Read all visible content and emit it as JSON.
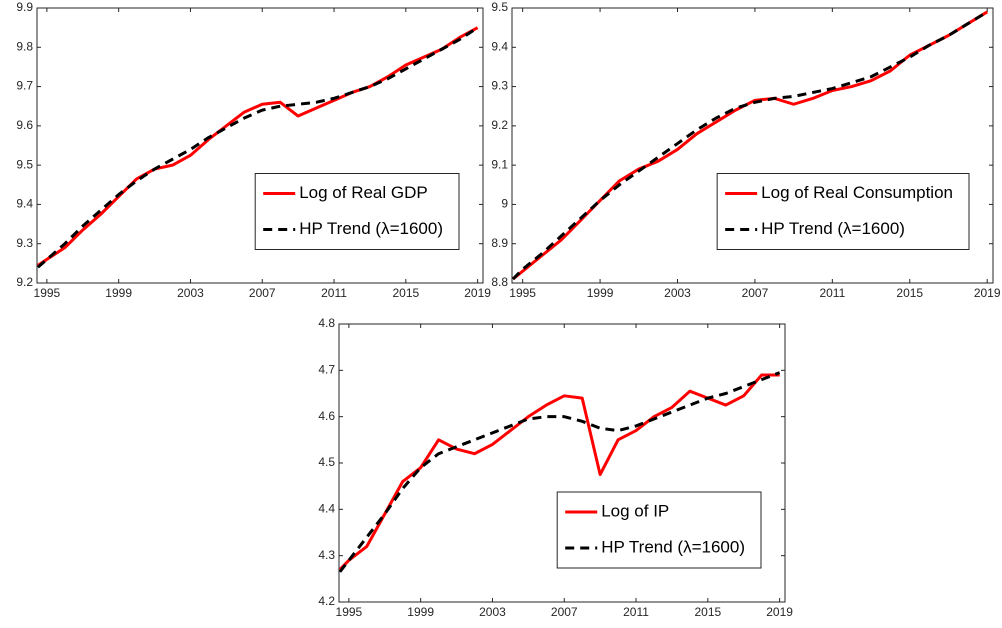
{
  "chart_data": [
    {
      "type": "line",
      "x": [
        1994.5,
        1995,
        1996,
        1997,
        1998,
        1999,
        2000,
        2001,
        2002,
        2003,
        2004,
        2005,
        2006,
        2007,
        2008,
        2009,
        2010,
        2011,
        2012,
        2013,
        2014,
        2015,
        2016,
        2017,
        2018,
        2019
      ],
      "series": [
        {
          "name": "Log of Real GDP",
          "color": "#ff0000",
          "line_style": "solid",
          "values": [
            9.245,
            9.26,
            9.29,
            9.335,
            9.375,
            9.42,
            9.465,
            9.49,
            9.5,
            9.525,
            9.565,
            9.6,
            9.635,
            9.655,
            9.66,
            9.625,
            9.645,
            9.665,
            9.685,
            9.7,
            9.725,
            9.755,
            9.775,
            9.795,
            9.825,
            9.85
          ]
        },
        {
          "name": "HP Trend (λ=1600)",
          "color": "#000000",
          "line_style": "dashed",
          "values": [
            9.24,
            9.26,
            9.3,
            9.345,
            9.385,
            9.425,
            9.46,
            9.49,
            9.515,
            9.54,
            9.57,
            9.595,
            9.62,
            9.64,
            9.65,
            9.655,
            9.66,
            9.67,
            9.685,
            9.7,
            9.72,
            9.745,
            9.77,
            9.795,
            9.82,
            9.85
          ]
        }
      ],
      "xlim": [
        1994.45,
        2019.3
      ],
      "xticks": [
        1995,
        1999,
        2003,
        2007,
        2011,
        2015,
        2019
      ],
      "ylim": [
        9.2,
        9.9
      ],
      "yticks": [
        9.2,
        9.3,
        9.4,
        9.5,
        9.6,
        9.7,
        9.8,
        9.9
      ],
      "legend": "right"
    },
    {
      "type": "line",
      "x": [
        1994.5,
        1995,
        1996,
        1997,
        1998,
        1999,
        2000,
        2001,
        2002,
        2003,
        2004,
        2005,
        2006,
        2007,
        2008,
        2009,
        2010,
        2011,
        2012,
        2013,
        2014,
        2015,
        2016,
        2017,
        2018,
        2019
      ],
      "series": [
        {
          "name": "Log of Real Consumption",
          "color": "#ff0000",
          "line_style": "solid",
          "values": [
            8.81,
            8.83,
            8.87,
            8.91,
            8.96,
            9.01,
            9.06,
            9.09,
            9.11,
            9.14,
            9.18,
            9.21,
            9.24,
            9.265,
            9.27,
            9.255,
            9.27,
            9.29,
            9.3,
            9.315,
            9.34,
            9.38,
            9.405,
            9.43,
            9.46,
            9.49
          ]
        },
        {
          "name": "HP Trend (λ=1600)",
          "color": "#000000",
          "line_style": "dashed",
          "values": [
            8.81,
            8.835,
            8.875,
            8.92,
            8.965,
            9.01,
            9.05,
            9.085,
            9.12,
            9.155,
            9.19,
            9.22,
            9.245,
            9.26,
            9.27,
            9.275,
            9.285,
            9.295,
            9.31,
            9.325,
            9.35,
            9.375,
            9.405,
            9.43,
            9.46,
            9.49
          ]
        }
      ],
      "xlim": [
        1994.45,
        2019.3
      ],
      "xticks": [
        1995,
        1999,
        2003,
        2007,
        2011,
        2015,
        2019
      ],
      "ylim": [
        8.8,
        9.5
      ],
      "yticks": [
        8.8,
        8.9,
        9,
        9.1,
        9.2,
        9.3,
        9.4,
        9.5
      ],
      "legend": "right"
    },
    {
      "type": "line",
      "x": [
        1994.5,
        1995,
        1996,
        1997,
        1998,
        1999,
        2000,
        2001,
        2002,
        2003,
        2004,
        2005,
        2006,
        2007,
        2008,
        2009,
        2010,
        2011,
        2012,
        2013,
        2014,
        2015,
        2016,
        2017,
        2018,
        2019
      ],
      "series": [
        {
          "name": "Log of IP",
          "color": "#ff0000",
          "line_style": "solid",
          "values": [
            4.27,
            4.29,
            4.32,
            4.39,
            4.46,
            4.49,
            4.55,
            4.53,
            4.52,
            4.54,
            4.57,
            4.6,
            4.625,
            4.645,
            4.64,
            4.475,
            4.55,
            4.57,
            4.6,
            4.62,
            4.655,
            4.64,
            4.625,
            4.645,
            4.69,
            4.69
          ]
        },
        {
          "name": "HP Trend (λ=1600)",
          "color": "#000000",
          "line_style": "dashed",
          "values": [
            4.265,
            4.29,
            4.34,
            4.39,
            4.445,
            4.49,
            4.52,
            4.535,
            4.55,
            4.565,
            4.58,
            4.595,
            4.6,
            4.6,
            4.59,
            4.575,
            4.57,
            4.58,
            4.595,
            4.61,
            4.625,
            4.64,
            4.65,
            4.665,
            4.68,
            4.695
          ]
        }
      ],
      "xlim": [
        1994.45,
        2019.3
      ],
      "xticks": [
        1995,
        1999,
        2003,
        2007,
        2011,
        2015,
        2019
      ],
      "ylim": [
        4.2,
        4.8
      ],
      "yticks": [
        4.2,
        4.3,
        4.4,
        4.5,
        4.6,
        4.7,
        4.8
      ],
      "legend": "lower right"
    }
  ]
}
